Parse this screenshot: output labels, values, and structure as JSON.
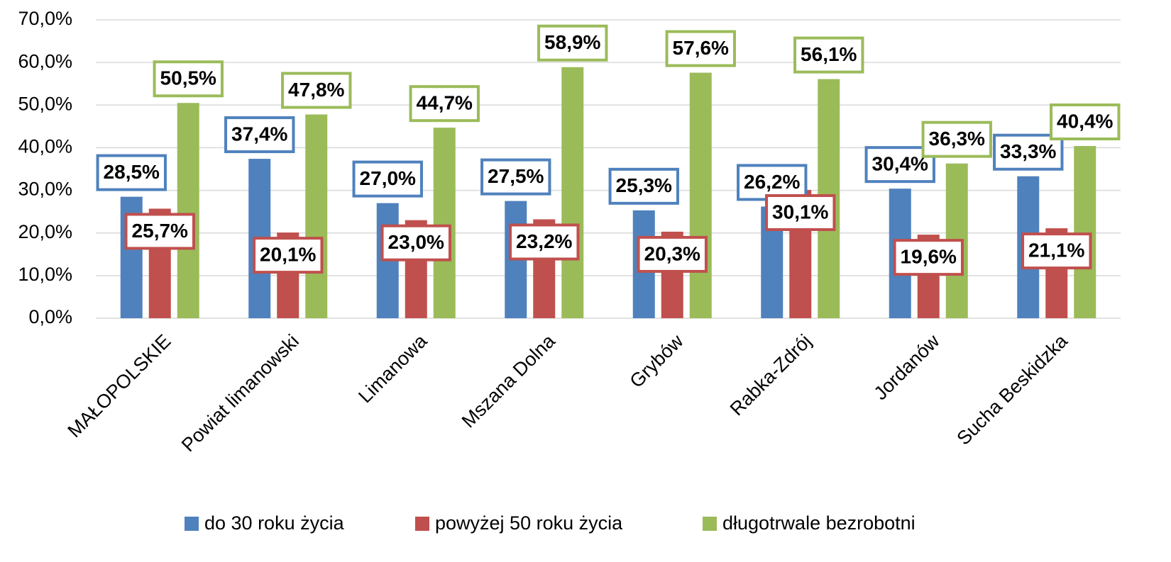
{
  "chart_data": {
    "type": "bar",
    "categories": [
      "MAŁOPOLSKIE",
      "Powiat limanowski",
      "Limanowa",
      "Mszana Dolna",
      "Grybów",
      "Rabka-Zdrój",
      "Jordanów",
      "Sucha Beskidzka"
    ],
    "series": [
      {
        "name": "do 30 roku życia",
        "color": "#4f81bd",
        "values": [
          28.5,
          37.4,
          27.0,
          27.5,
          25.3,
          26.2,
          30.4,
          33.3
        ],
        "value_labels": [
          "28,5%",
          "37,4%",
          "27,0%",
          "27,5%",
          "25,3%",
          "26,2%",
          "30,4%",
          "33,3%"
        ]
      },
      {
        "name": "powyżej 50 roku życia",
        "color": "#c0504d",
        "values": [
          25.7,
          20.1,
          23.0,
          23.2,
          20.3,
          30.1,
          19.6,
          21.1
        ],
        "value_labels": [
          "25,7%",
          "20,1%",
          "23,0%",
          "23,2%",
          "20,3%",
          "30,1%",
          "19,6%",
          "21,1%"
        ]
      },
      {
        "name": "długotrwale bezrobotni",
        "color": "#9bbb59",
        "values": [
          50.5,
          47.8,
          44.7,
          58.9,
          57.6,
          56.1,
          36.3,
          40.4
        ],
        "value_labels": [
          "50,5%",
          "47,8%",
          "44,7%",
          "58,9%",
          "57,6%",
          "56,1%",
          "36,3%",
          "40,4%"
        ]
      }
    ],
    "ylim": [
      0,
      70
    ],
    "yticks": [
      {
        "value": 0,
        "label": "0,0%"
      },
      {
        "value": 10,
        "label": "10,0%"
      },
      {
        "value": 20,
        "label": "20,0%"
      },
      {
        "value": 30,
        "label": "30,0%"
      },
      {
        "value": 40,
        "label": "40,0%"
      },
      {
        "value": 50,
        "label": "50,0%"
      },
      {
        "value": 60,
        "label": "60,0%"
      },
      {
        "value": 70,
        "label": "70,0%"
      }
    ],
    "grid": true,
    "legend": "bottom"
  }
}
